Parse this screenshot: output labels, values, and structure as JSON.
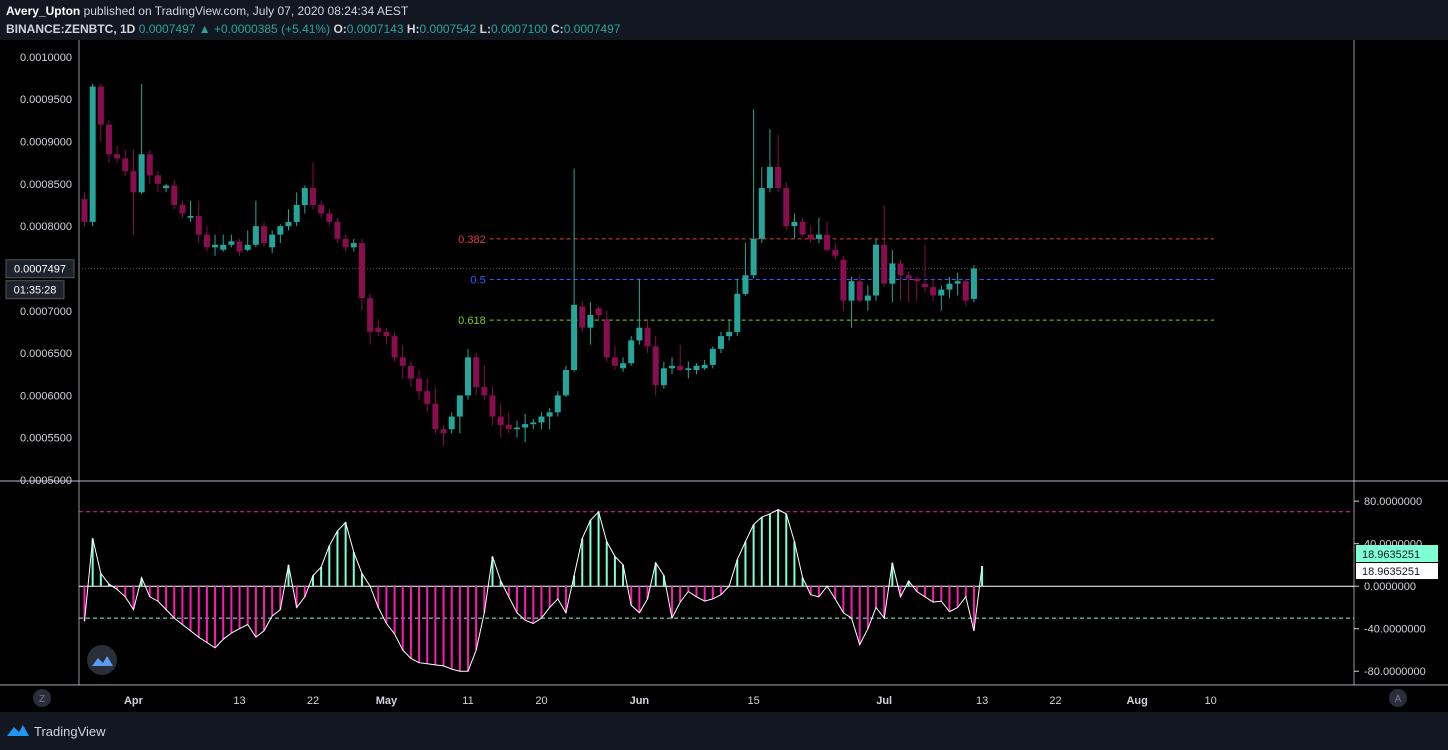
{
  "header": {
    "author": "Avery_Upton",
    "published": " published on TradingView.com, July 07, 2020 08:24:34 AEST",
    "symbol": "BINANCE:ZENBTC, 1D",
    "last": "0.0007497",
    "change_arrow": "▲",
    "change": "+0.0000385 (+5.41%)",
    "o_label": "O:",
    "o": "0.0007143",
    "h_label": "H:",
    "h": "0.0007542",
    "l_label": "L:",
    "l": "0.0007100",
    "c_label": "C:",
    "c": "0.0007497"
  },
  "footer": {
    "brand": "TradingView"
  },
  "colors": {
    "background": "#000000",
    "up": "#26a69a",
    "down": "#880e4f",
    "fib_382": "#e53946",
    "fib_5": "#2962ff",
    "fib_618": "#7cd321",
    "hist_up": "#7fffd4",
    "hist_down": "#ff1ab4"
  },
  "chart_data": [
    {
      "type": "candlestick",
      "y_ticks": [
        "0.0010000",
        "0.0009500",
        "0.0009000",
        "0.0008500",
        "0.0008000",
        "0.0007500",
        "0.0007000",
        "0.0006500",
        "0.0006000",
        "0.0005500",
        "0.0005000"
      ],
      "ylim": [
        0.0005,
        0.00102
      ],
      "price_label": "0.0007497",
      "countdown_label": "01:35:28",
      "x_ticks": [
        {
          "label": "Apr",
          "day": 6
        },
        {
          "label": "13",
          "day": 19
        },
        {
          "label": "22",
          "day": 28
        },
        {
          "label": "May",
          "day": 37
        },
        {
          "label": "11",
          "day": 47
        },
        {
          "label": "20",
          "day": 56
        },
        {
          "label": "Jun",
          "day": 68
        },
        {
          "label": "15",
          "day": 82
        },
        {
          "label": "Jul",
          "day": 98
        },
        {
          "label": "13",
          "day": 110
        },
        {
          "label": "22",
          "day": 119
        },
        {
          "label": "Aug",
          "day": 129
        },
        {
          "label": "10",
          "day": 138
        }
      ],
      "fib_levels": [
        {
          "label": "0.382",
          "value": 0.000785,
          "day_start": 45,
          "day_end": 135
        },
        {
          "label": "0.5",
          "value": 0.000737,
          "day_start": 45,
          "day_end": 135
        },
        {
          "label": "0.618",
          "value": 0.000689,
          "day_start": 45,
          "day_end": 135
        }
      ],
      "candles_ohlc": [
        [
          0.000832,
          0.00084,
          0.0008,
          0.000805
        ],
        [
          0.000805,
          0.000968,
          0.0008,
          0.000965
        ],
        [
          0.000965,
          0.000968,
          0.0009,
          0.00092
        ],
        [
          0.00092,
          0.000925,
          0.000875,
          0.000885
        ],
        [
          0.000885,
          0.000895,
          0.000875,
          0.00088
        ],
        [
          0.00088,
          0.00089,
          0.00086,
          0.000865
        ],
        [
          0.000865,
          0.00089,
          0.00079,
          0.00084
        ],
        [
          0.00084,
          0.000968,
          0.000838,
          0.000885
        ],
        [
          0.000885,
          0.00089,
          0.00085,
          0.00086
        ],
        [
          0.00086,
          0.000865,
          0.00084,
          0.00085
        ],
        [
          0.000845,
          0.00085,
          0.00084,
          0.000848
        ],
        [
          0.000848,
          0.000855,
          0.00082,
          0.000825
        ],
        [
          0.000825,
          0.00083,
          0.00081,
          0.000815
        ],
        [
          0.00081,
          0.00083,
          0.000805,
          0.000812
        ],
        [
          0.000812,
          0.00083,
          0.00078,
          0.00079
        ],
        [
          0.00079,
          0.0008,
          0.00077,
          0.000775
        ],
        [
          0.000775,
          0.00079,
          0.000765,
          0.000778
        ],
        [
          0.000772,
          0.00079,
          0.00077,
          0.000778
        ],
        [
          0.000778,
          0.00079,
          0.000775,
          0.000782
        ],
        [
          0.000782,
          0.000785,
          0.000765,
          0.00077
        ],
        [
          0.000772,
          0.000795,
          0.00077,
          0.000778
        ],
        [
          0.000778,
          0.00083,
          0.000775,
          0.0008
        ],
        [
          0.0008,
          0.000805,
          0.000775,
          0.00078
        ],
        [
          0.000775,
          0.000795,
          0.000768,
          0.00079
        ],
        [
          0.00079,
          0.000802,
          0.00078,
          0.0008
        ],
        [
          0.0008,
          0.00082,
          0.000795,
          0.000805
        ],
        [
          0.000805,
          0.00084,
          0.0008,
          0.000825
        ],
        [
          0.000825,
          0.000848,
          0.000815,
          0.000845
        ],
        [
          0.000845,
          0.000875,
          0.00082,
          0.000825
        ],
        [
          0.000825,
          0.00083,
          0.00081,
          0.000815
        ],
        [
          0.000815,
          0.00082,
          0.0008,
          0.000805
        ],
        [
          0.000805,
          0.00081,
          0.00078,
          0.000785
        ],
        [
          0.000785,
          0.00079,
          0.00077,
          0.000775
        ],
        [
          0.000775,
          0.000785,
          0.00077,
          0.00078
        ],
        [
          0.00078,
          0.000785,
          0.0007,
          0.000715
        ],
        [
          0.000715,
          0.00072,
          0.00066,
          0.000675
        ],
        [
          0.00068,
          0.00069,
          0.00067,
          0.000675
        ],
        [
          0.000675,
          0.00068,
          0.00066,
          0.00067
        ],
        [
          0.00067,
          0.000675,
          0.00064,
          0.000645
        ],
        [
          0.000645,
          0.00066,
          0.00062,
          0.000635
        ],
        [
          0.000635,
          0.00064,
          0.00061,
          0.00062
        ],
        [
          0.00062,
          0.00063,
          0.000595,
          0.000605
        ],
        [
          0.000605,
          0.00062,
          0.00058,
          0.00059
        ],
        [
          0.00059,
          0.00061,
          0.000555,
          0.00056
        ],
        [
          0.00056,
          0.000565,
          0.00054,
          0.000555
        ],
        [
          0.00056,
          0.00058,
          0.000555,
          0.000575
        ],
        [
          0.000575,
          0.0006,
          0.000555,
          0.0006
        ],
        [
          0.0006,
          0.000655,
          0.000595,
          0.000645
        ],
        [
          0.000645,
          0.00065,
          0.0006,
          0.00061
        ],
        [
          0.00061,
          0.000635,
          0.000595,
          0.0006
        ],
        [
          0.0006,
          0.00061,
          0.000565,
          0.000575
        ],
        [
          0.000575,
          0.00059,
          0.00055,
          0.000565
        ],
        [
          0.000565,
          0.00058,
          0.000555,
          0.00056
        ],
        [
          0.00056,
          0.00057,
          0.00055,
          0.000562
        ],
        [
          0.000562,
          0.000578,
          0.000545,
          0.000566
        ],
        [
          0.000566,
          0.000572,
          0.00056,
          0.000568
        ],
        [
          0.000568,
          0.00058,
          0.00056,
          0.000575
        ],
        [
          0.000575,
          0.000585,
          0.00056,
          0.00058
        ],
        [
          0.00058,
          0.000605,
          0.000575,
          0.0006
        ],
        [
          0.0006,
          0.000635,
          0.000598,
          0.00063
        ],
        [
          0.00063,
          0.000868,
          0.000628,
          0.000707
        ],
        [
          0.000705,
          0.000712,
          0.000675,
          0.00068
        ],
        [
          0.00068,
          0.00071,
          0.00066,
          0.000695
        ],
        [
          0.000703,
          0.000706,
          0.00069,
          0.000695
        ],
        [
          0.00069,
          0.0007,
          0.00064,
          0.000645
        ],
        [
          0.000645,
          0.000658,
          0.00063,
          0.000635
        ],
        [
          0.000632,
          0.000645,
          0.000628,
          0.000638
        ],
        [
          0.000638,
          0.00067,
          0.000635,
          0.000665
        ],
        [
          0.000665,
          0.000738,
          0.00066,
          0.00068
        ],
        [
          0.00068,
          0.00069,
          0.00065,
          0.000658
        ],
        [
          0.000658,
          0.00067,
          0.0006,
          0.000612
        ],
        [
          0.000612,
          0.00064,
          0.000608,
          0.000632
        ],
        [
          0.000632,
          0.000645,
          0.000625,
          0.000635
        ],
        [
          0.000635,
          0.00066,
          0.000628,
          0.00063
        ],
        [
          0.00063,
          0.00064,
          0.00062,
          0.000632
        ],
        [
          0.00063,
          0.000638,
          0.000625,
          0.000635
        ],
        [
          0.000632,
          0.000642,
          0.00063,
          0.000636
        ],
        [
          0.000636,
          0.000658,
          0.000632,
          0.000655
        ],
        [
          0.000655,
          0.000675,
          0.00065,
          0.00067
        ],
        [
          0.00067,
          0.00069,
          0.000665,
          0.000675
        ],
        [
          0.000675,
          0.000738,
          0.00067,
          0.00072
        ],
        [
          0.00072,
          0.00078,
          0.000718,
          0.000742
        ],
        [
          0.000742,
          0.000938,
          0.000738,
          0.000785
        ],
        [
          0.000785,
          0.00087,
          0.00078,
          0.000845
        ],
        [
          0.000845,
          0.000915,
          0.00084,
          0.00087
        ],
        [
          0.00087,
          0.000908,
          0.00084,
          0.000845
        ],
        [
          0.000845,
          0.000852,
          0.000795,
          0.0008
        ],
        [
          0.0008,
          0.000815,
          0.000785,
          0.000805
        ],
        [
          0.000805,
          0.00081,
          0.000788,
          0.00079
        ],
        [
          0.00079,
          0.0008,
          0.00078,
          0.000785
        ],
        [
          0.000785,
          0.00081,
          0.00078,
          0.00079
        ],
        [
          0.00079,
          0.000805,
          0.00077,
          0.000772
        ],
        [
          0.000772,
          0.00078,
          0.00076,
          0.000765
        ],
        [
          0.00076,
          0.000765,
          0.0007,
          0.000712
        ],
        [
          0.000712,
          0.00074,
          0.00068,
          0.000735
        ],
        [
          0.000735,
          0.000742,
          0.00071,
          0.000712
        ],
        [
          0.000712,
          0.00073,
          0.0007,
          0.000718
        ],
        [
          0.000718,
          0.000785,
          0.000712,
          0.000778
        ],
        [
          0.000778,
          0.000825,
          0.000728,
          0.000732
        ],
        [
          0.000732,
          0.000772,
          0.00071,
          0.000756
        ],
        [
          0.000756,
          0.00076,
          0.000712,
          0.000742
        ],
        [
          0.000742,
          0.000746,
          0.00071,
          0.000738
        ],
        [
          0.000738,
          0.00074,
          0.000712,
          0.000735
        ],
        [
          0.000732,
          0.000778,
          0.000722,
          0.000728
        ],
        [
          0.000728,
          0.000738,
          0.000712,
          0.000718
        ],
        [
          0.000718,
          0.00073,
          0.0007,
          0.000725
        ],
        [
          0.000725,
          0.00074,
          0.000715,
          0.000732
        ],
        [
          0.000732,
          0.000745,
          0.000718,
          0.000735
        ],
        [
          0.000735,
          0.000738,
          0.000705,
          0.000712
        ],
        [
          0.000714,
          0.000754,
          0.00071,
          0.00075
        ]
      ]
    },
    {
      "type": "bar",
      "indicator_value_label": "18.9635251",
      "y_ticks": [
        "80.0000000",
        "40.0000000",
        "0.0000000",
        "-40.0000000",
        "-80.0000000"
      ],
      "ylim": [
        -92,
        98
      ],
      "bands": [
        70,
        -30
      ],
      "values": [
        -33,
        45,
        12,
        2,
        -3,
        -10,
        -22,
        8,
        -10,
        -14,
        -22,
        -30,
        -36,
        -42,
        -48,
        -53,
        -58,
        -50,
        -44,
        -40,
        -36,
        -48,
        -42,
        -28,
        -22,
        20,
        -20,
        -10,
        10,
        18,
        38,
        52,
        60,
        32,
        12,
        0,
        -20,
        -35,
        -45,
        -60,
        -68,
        -72,
        -73,
        -74,
        -75,
        -78,
        -80,
        -80,
        -60,
        -25,
        28,
        5,
        -10,
        -25,
        -32,
        -35,
        -30,
        -20,
        -12,
        -25,
        10,
        45,
        62,
        70,
        42,
        28,
        20,
        -18,
        -25,
        -12,
        22,
        10,
        -30,
        -15,
        -5,
        -10,
        -14,
        -12,
        -8,
        0,
        25,
        42,
        58,
        65,
        68,
        72,
        68,
        42,
        8,
        -8,
        -10,
        0,
        -12,
        -25,
        -30,
        -55,
        -40,
        -20,
        -30,
        22,
        -10,
        5,
        -5,
        -10,
        -15,
        -14,
        -24,
        -20,
        -10,
        -42,
        18.96
      ]
    }
  ]
}
